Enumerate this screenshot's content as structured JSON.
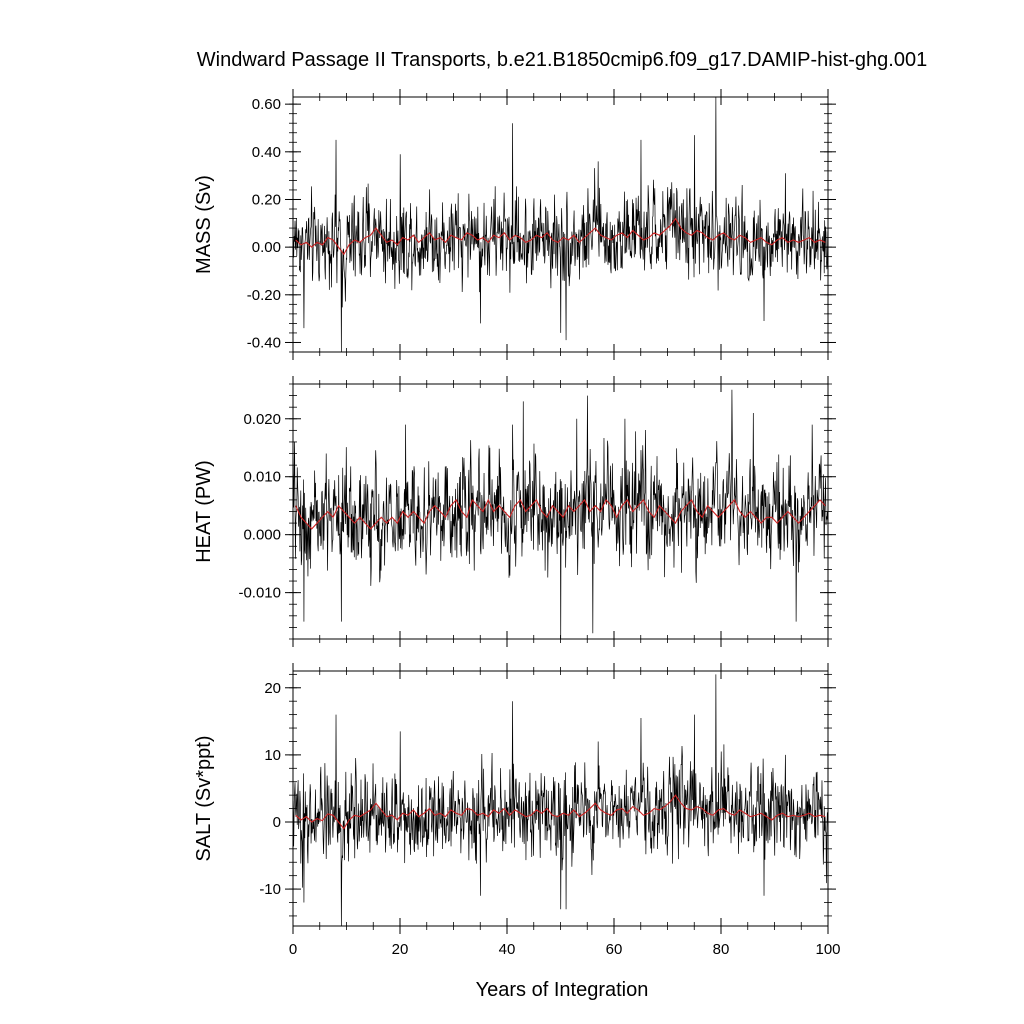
{
  "title": "Windward Passage II Transports, b.e21.B1850cmip6.f09_g17.DAMIP-hist-ghg.001",
  "xlabel": "Years of Integration",
  "chart_data": [
    {
      "type": "line",
      "ylabel": "MASS (Sv)",
      "xlim": [
        0,
        100
      ],
      "ylim": [
        -0.44,
        0.63
      ],
      "yticks": [
        -0.4,
        -0.2,
        0.0,
        0.2,
        0.4,
        0.6
      ],
      "ytick_labels": [
        "-0.40",
        "-0.20",
        "0.00",
        "0.20",
        "0.40",
        "0.60"
      ],
      "xticks": [
        0,
        20,
        40,
        60,
        80,
        100
      ],
      "xtick_labels": [
        "0",
        "20",
        "40",
        "60",
        "80",
        "100"
      ],
      "series": [
        {
          "role": "monthly",
          "color": "#000000",
          "mean": 0.03,
          "spread": 0.09,
          "spikes": [
            [
              8,
              0.45
            ],
            [
              9,
              -0.44
            ],
            [
              2,
              -0.34
            ],
            [
              20,
              0.39
            ],
            [
              41,
              0.52
            ],
            [
              65,
              0.45
            ],
            [
              75,
              0.47
            ],
            [
              79,
              0.63
            ],
            [
              51,
              -0.39
            ],
            [
              50,
              -0.36
            ],
            [
              35,
              -0.32
            ],
            [
              88,
              -0.31
            ],
            [
              57,
              0.36
            ],
            [
              92,
              0.31
            ]
          ]
        },
        {
          "role": "annual-mean",
          "color": "#cc2222",
          "x": [
            0.5,
            1.5,
            2.5,
            3.5,
            4.5,
            5.5,
            6.5,
            7.5,
            8.5,
            9.5,
            10.5,
            11.5,
            12.5,
            13.5,
            14.5,
            15.5,
            16.5,
            17.5,
            18.5,
            19.5,
            20.5,
            21.5,
            22.5,
            23.5,
            24.5,
            25.5,
            26.5,
            27.5,
            28.5,
            29.5,
            30.5,
            31.5,
            32.5,
            33.5,
            34.5,
            35.5,
            36.5,
            37.5,
            38.5,
            39.5,
            40.5,
            41.5,
            42.5,
            43.5,
            44.5,
            45.5,
            46.5,
            47.5,
            48.5,
            49.5,
            50.5,
            51.5,
            52.5,
            53.5,
            54.5,
            55.5,
            56.5,
            57.5,
            58.5,
            59.5,
            60.5,
            61.5,
            62.5,
            63.5,
            64.5,
            65.5,
            66.5,
            67.5,
            68.5,
            69.5,
            70.5,
            71.5,
            72.5,
            73.5,
            74.5,
            75.5,
            76.5,
            77.5,
            78.5,
            79.5,
            80.5,
            81.5,
            82.5,
            83.5,
            84.5,
            85.5,
            86.5,
            87.5,
            88.5,
            89.5,
            90.5,
            91.5,
            92.5,
            93.5,
            94.5,
            95.5,
            96.5,
            97.5,
            98.5,
            99.5
          ],
          "y": [
            0.03,
            0.01,
            0.02,
            0.0,
            0.02,
            0.01,
            0.04,
            0.03,
            0.0,
            -0.03,
            0.01,
            0.03,
            0.02,
            0.04,
            0.05,
            0.08,
            0.05,
            0.02,
            0.03,
            0.01,
            0.04,
            0.03,
            0.05,
            0.02,
            0.04,
            0.06,
            0.03,
            0.04,
            0.02,
            0.05,
            0.04,
            0.03,
            0.06,
            0.05,
            0.03,
            0.04,
            0.02,
            0.05,
            0.04,
            0.06,
            0.03,
            0.05,
            0.04,
            0.02,
            0.03,
            0.05,
            0.04,
            0.06,
            0.03,
            0.02,
            0.04,
            0.03,
            0.05,
            0.02,
            0.04,
            0.06,
            0.08,
            0.05,
            0.04,
            0.03,
            0.05,
            0.06,
            0.04,
            0.07,
            0.05,
            0.03,
            0.04,
            0.06,
            0.05,
            0.07,
            0.09,
            0.12,
            0.08,
            0.06,
            0.05,
            0.07,
            0.06,
            0.04,
            0.03,
            0.05,
            0.06,
            0.04,
            0.03,
            0.05,
            0.04,
            0.02,
            0.03,
            0.04,
            0.02,
            0.01,
            0.03,
            0.04,
            0.02,
            0.03,
            0.02,
            0.03,
            0.04,
            0.02,
            0.03,
            0.02
          ]
        }
      ]
    },
    {
      "type": "line",
      "ylabel": "HEAT (PW)",
      "xlim": [
        0,
        100
      ],
      "ylim": [
        -0.018,
        0.026
      ],
      "yticks": [
        -0.01,
        0.0,
        0.01,
        0.02
      ],
      "ytick_labels": [
        "-0.010",
        "0.000",
        "0.010",
        "0.020"
      ],
      "xticks": [
        0,
        20,
        40,
        60,
        80,
        100
      ],
      "xtick_labels": [
        "0",
        "20",
        "40",
        "60",
        "80",
        "100"
      ],
      "series": [
        {
          "role": "monthly",
          "color": "#000000",
          "mean": 0.004,
          "spread": 0.0045,
          "spikes": [
            [
              2,
              -0.015
            ],
            [
              9,
              -0.015
            ],
            [
              21,
              0.019
            ],
            [
              41,
              0.019
            ],
            [
              43,
              0.023
            ],
            [
              50,
              -0.018
            ],
            [
              53,
              0.02
            ],
            [
              55,
              0.024
            ],
            [
              56,
              -0.017
            ],
            [
              62,
              0.02
            ],
            [
              82,
              0.025
            ],
            [
              86,
              0.021
            ],
            [
              94,
              -0.015
            ],
            [
              97,
              0.019
            ]
          ]
        },
        {
          "role": "annual-mean",
          "color": "#cc2222",
          "x": [
            0.5,
            1.5,
            2.5,
            3.5,
            4.5,
            5.5,
            6.5,
            7.5,
            8.5,
            9.5,
            10.5,
            11.5,
            12.5,
            13.5,
            14.5,
            15.5,
            16.5,
            17.5,
            18.5,
            19.5,
            20.5,
            21.5,
            22.5,
            23.5,
            24.5,
            25.5,
            26.5,
            27.5,
            28.5,
            29.5,
            30.5,
            31.5,
            32.5,
            33.5,
            34.5,
            35.5,
            36.5,
            37.5,
            38.5,
            39.5,
            40.5,
            41.5,
            42.5,
            43.5,
            44.5,
            45.5,
            46.5,
            47.5,
            48.5,
            49.5,
            50.5,
            51.5,
            52.5,
            53.5,
            54.5,
            55.5,
            56.5,
            57.5,
            58.5,
            59.5,
            60.5,
            61.5,
            62.5,
            63.5,
            64.5,
            65.5,
            66.5,
            67.5,
            68.5,
            69.5,
            70.5,
            71.5,
            72.5,
            73.5,
            74.5,
            75.5,
            76.5,
            77.5,
            78.5,
            79.5,
            80.5,
            81.5,
            82.5,
            83.5,
            84.5,
            85.5,
            86.5,
            87.5,
            88.5,
            89.5,
            90.5,
            91.5,
            92.5,
            93.5,
            94.5,
            95.5,
            96.5,
            97.5,
            98.5,
            99.5
          ],
          "y": [
            0.005,
            0.003,
            0.002,
            0.001,
            0.002,
            0.003,
            0.004,
            0.003,
            0.005,
            0.004,
            0.003,
            0.002,
            0.003,
            0.002,
            0.001,
            0.002,
            0.003,
            0.002,
            0.003,
            0.002,
            0.004,
            0.003,
            0.004,
            0.003,
            0.002,
            0.004,
            0.005,
            0.004,
            0.003,
            0.005,
            0.006,
            0.004,
            0.003,
            0.006,
            0.005,
            0.004,
            0.006,
            0.004,
            0.005,
            0.004,
            0.003,
            0.005,
            0.006,
            0.004,
            0.005,
            0.006,
            0.004,
            0.003,
            0.005,
            0.004,
            0.003,
            0.005,
            0.004,
            0.005,
            0.006,
            0.004,
            0.005,
            0.004,
            0.006,
            0.005,
            0.003,
            0.005,
            0.006,
            0.004,
            0.005,
            0.006,
            0.004,
            0.003,
            0.005,
            0.004,
            0.003,
            0.002,
            0.004,
            0.005,
            0.006,
            0.004,
            0.003,
            0.005,
            0.004,
            0.003,
            0.004,
            0.005,
            0.006,
            0.004,
            0.003,
            0.004,
            0.003,
            0.002,
            0.003,
            0.003,
            0.002,
            0.003,
            0.004,
            0.003,
            0.002,
            0.003,
            0.004,
            0.005,
            0.006,
            0.005
          ]
        }
      ]
    },
    {
      "type": "line",
      "ylabel": "SALT (Sv*ppt)",
      "xlim": [
        0,
        100
      ],
      "ylim": [
        -15.5,
        22.5
      ],
      "yticks": [
        -10,
        0,
        10,
        20
      ],
      "ytick_labels": [
        "-10",
        "0",
        "10",
        "20"
      ],
      "xticks": [
        0,
        20,
        40,
        60,
        80,
        100
      ],
      "xtick_labels": [
        "0",
        "20",
        "40",
        "60",
        "80",
        "100"
      ],
      "series": [
        {
          "role": "monthly",
          "color": "#000000",
          "mean": 1.0,
          "spread": 3.2,
          "spikes": [
            [
              8,
              16
            ],
            [
              9,
              -15.5
            ],
            [
              2,
              -12
            ],
            [
              20,
              13.5
            ],
            [
              41,
              18
            ],
            [
              65,
              15.5
            ],
            [
              75,
              16
            ],
            [
              79,
              22
            ],
            [
              51,
              -13
            ],
            [
              50,
              -13
            ],
            [
              35,
              -11
            ],
            [
              88,
              -11
            ],
            [
              57,
              12
            ],
            [
              92,
              10
            ]
          ]
        },
        {
          "role": "annual-mean",
          "color": "#cc2222",
          "x": [
            0.5,
            1.5,
            2.5,
            3.5,
            4.5,
            5.5,
            6.5,
            7.5,
            8.5,
            9.5,
            10.5,
            11.5,
            12.5,
            13.5,
            14.5,
            15.5,
            16.5,
            17.5,
            18.5,
            19.5,
            20.5,
            21.5,
            22.5,
            23.5,
            24.5,
            25.5,
            26.5,
            27.5,
            28.5,
            29.5,
            30.5,
            31.5,
            32.5,
            33.5,
            34.5,
            35.5,
            36.5,
            37.5,
            38.5,
            39.5,
            40.5,
            41.5,
            42.5,
            43.5,
            44.5,
            45.5,
            46.5,
            47.5,
            48.5,
            49.5,
            50.5,
            51.5,
            52.5,
            53.5,
            54.5,
            55.5,
            56.5,
            57.5,
            58.5,
            59.5,
            60.5,
            61.5,
            62.5,
            63.5,
            64.5,
            65.5,
            66.5,
            67.5,
            68.5,
            69.5,
            70.5,
            71.5,
            72.5,
            73.5,
            74.5,
            75.5,
            76.5,
            77.5,
            78.5,
            79.5,
            80.5,
            81.5,
            82.5,
            83.5,
            84.5,
            85.5,
            86.5,
            87.5,
            88.5,
            89.5,
            90.5,
            91.5,
            92.5,
            93.5,
            94.5,
            95.5,
            96.5,
            97.5,
            98.5,
            99.5
          ],
          "y": [
            1.0,
            0.3,
            0.8,
            0.0,
            0.5,
            0.2,
            1.2,
            1.0,
            0.0,
            -1.0,
            0.3,
            1.0,
            0.8,
            1.3,
            1.8,
            2.8,
            1.8,
            0.8,
            1.0,
            0.3,
            1.3,
            1.0,
            1.8,
            0.8,
            1.3,
            2.0,
            1.0,
            1.3,
            0.8,
            1.8,
            1.3,
            1.0,
            2.0,
            1.8,
            1.0,
            1.3,
            0.8,
            1.8,
            1.3,
            2.0,
            1.0,
            1.8,
            1.3,
            0.8,
            1.0,
            1.8,
            1.3,
            2.0,
            1.0,
            0.8,
            1.3,
            1.0,
            1.8,
            0.8,
            1.3,
            2.0,
            2.8,
            1.8,
            1.3,
            1.0,
            1.8,
            2.0,
            1.3,
            2.3,
            1.8,
            1.0,
            1.3,
            2.0,
            1.8,
            2.3,
            3.0,
            4.0,
            2.8,
            2.0,
            1.8,
            2.3,
            2.0,
            1.3,
            1.0,
            1.8,
            2.0,
            1.3,
            1.0,
            1.8,
            1.3,
            0.8,
            1.0,
            1.3,
            0.8,
            0.3,
            1.0,
            1.3,
            0.8,
            1.0,
            0.8,
            1.0,
            1.3,
            0.8,
            1.0,
            0.8
          ]
        }
      ]
    }
  ]
}
